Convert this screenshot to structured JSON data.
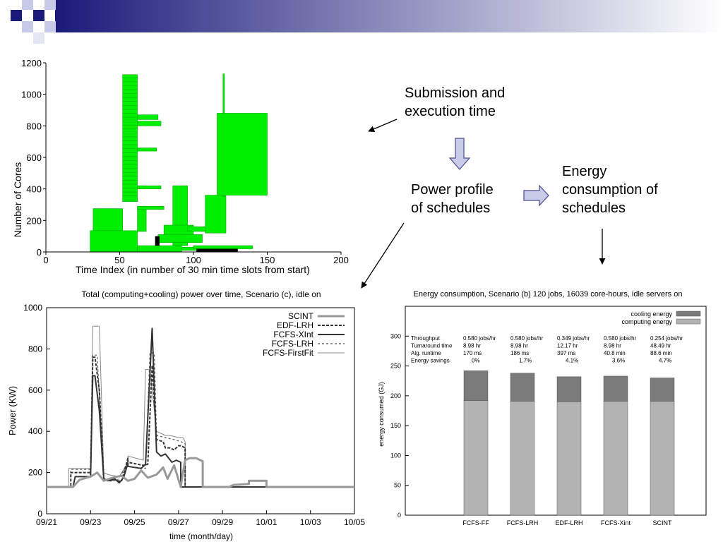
{
  "slide": {
    "accent_color": "#1a1a7a",
    "header_gradient": [
      "#1a1a7a",
      "#ffffff"
    ],
    "flow_labels": {
      "submission": [
        "Submission and",
        "execution time"
      ],
      "power_profile": [
        "Power profile",
        "of schedules"
      ],
      "energy_consumption": [
        "Energy",
        "consumption of",
        "schedules"
      ]
    },
    "arrow_fill": "#c9cce8"
  },
  "chart_data": [
    {
      "type": "bar",
      "title": "",
      "xlabel": "Time Index (in number of 30 min time slots from start)",
      "ylabel": "Number of Cores",
      "xlim": [
        0,
        200
      ],
      "ylim": [
        0,
        1200
      ],
      "xticks": [
        0,
        50,
        100,
        150,
        200
      ],
      "yticks": [
        0,
        200,
        400,
        600,
        800,
        1000,
        1200
      ],
      "bar_color": "#00ee00",
      "blocks": [
        {
          "x0": 52,
          "x1": 62,
          "y0": 320,
          "y1": 1125
        },
        {
          "x0": 62,
          "x1": 76,
          "y0": 840,
          "y1": 870
        },
        {
          "x0": 62,
          "x1": 78,
          "y0": 800,
          "y1": 830
        },
        {
          "x0": 62,
          "x1": 75,
          "y0": 640,
          "y1": 660
        },
        {
          "x0": 62,
          "x1": 78,
          "y0": 400,
          "y1": 420
        },
        {
          "x0": 62,
          "x1": 80,
          "y0": 270,
          "y1": 290
        },
        {
          "x0": 32,
          "x1": 52,
          "y0": 130,
          "y1": 275
        },
        {
          "x0": 30,
          "x1": 62,
          "y0": 0,
          "y1": 135
        },
        {
          "x0": 62,
          "x1": 68,
          "y0": 130,
          "y1": 270
        },
        {
          "x0": 62,
          "x1": 92,
          "y0": 0,
          "y1": 40
        },
        {
          "x0": 86,
          "x1": 96,
          "y0": 40,
          "y1": 420
        },
        {
          "x0": 80,
          "x1": 100,
          "y0": 100,
          "y1": 170
        },
        {
          "x0": 76,
          "x1": 106,
          "y0": 60,
          "y1": 110
        },
        {
          "x0": 96,
          "x1": 108,
          "y0": 130,
          "y1": 160
        },
        {
          "x0": 108,
          "x1": 122,
          "y0": 120,
          "y1": 360
        },
        {
          "x0": 120,
          "x1": 121,
          "y0": 350,
          "y1": 1130
        },
        {
          "x0": 116,
          "x1": 150,
          "y0": 360,
          "y1": 880
        },
        {
          "x0": 92,
          "x1": 130,
          "y0": 10,
          "y1": 30
        },
        {
          "x0": 100,
          "x1": 140,
          "y0": 20,
          "y1": 40
        }
      ],
      "black_blocks": [
        {
          "x0": 74,
          "x1": 77,
          "y0": 40,
          "y1": 100
        },
        {
          "x0": 102,
          "x1": 130,
          "y0": 0,
          "y1": 20
        }
      ]
    },
    {
      "type": "line",
      "title": "Total (computing+cooling) power over time, Scenario (c), idle on",
      "xlabel": "time (month/day)",
      "ylabel": "Power (KW)",
      "xlim": [
        0,
        14
      ],
      "ylim": [
        0,
        1000
      ],
      "xtick_labels": [
        "09/21",
        "09/23",
        "09/25",
        "09/27",
        "09/29",
        "10/01",
        "10/03",
        "10/05"
      ],
      "xtick_values": [
        0,
        2,
        4,
        6,
        8,
        10,
        12,
        14
      ],
      "yticks": [
        0,
        200,
        400,
        600,
        800,
        1000
      ],
      "legend_position": "top-right",
      "series": [
        {
          "name": "SCINT",
          "color": "#999999",
          "width": 3,
          "dash": "",
          "x": [
            0,
            1.2,
            1.5,
            2.0,
            2.3,
            2.6,
            3.0,
            3.4,
            3.7,
            4.0,
            4.3,
            4.6,
            5.0,
            5.3,
            5.5,
            5.8,
            6.1,
            6.2,
            6.3,
            6.5,
            6.8,
            7.0,
            7.1,
            7.1,
            7.3,
            7.8,
            8.0,
            8.3,
            8.5,
            8.5,
            9.2,
            9.2,
            10.0,
            10.0,
            14
          ],
          "y": [
            130,
            130,
            165,
            180,
            200,
            160,
            175,
            185,
            160,
            170,
            210,
            175,
            190,
            225,
            170,
            235,
            130,
            200,
            260,
            270,
            270,
            260,
            255,
            130,
            130,
            130,
            130,
            130,
            140,
            140,
            145,
            160,
            160,
            130,
            130
          ]
        },
        {
          "name": "EDF-LRH",
          "color": "#333333",
          "width": 2,
          "dash": "4,2",
          "x": [
            0,
            1.1,
            1.1,
            2.0,
            2.1,
            2.2,
            2.4,
            2.6,
            2.8,
            3.0,
            3.4,
            3.7,
            3.7,
            4.4,
            4.6,
            4.8,
            5.0,
            5.3,
            5.4,
            5.6,
            5.8,
            6.0,
            6.1,
            6.3,
            6.3,
            6.5,
            14
          ],
          "y": [
            130,
            130,
            200,
            200,
            760,
            760,
            600,
            170,
            160,
            170,
            155,
            270,
            250,
            235,
            240,
            720,
            360,
            350,
            320,
            320,
            310,
            330,
            330,
            320,
            130,
            130,
            130
          ]
        },
        {
          "name": "FCFS-XInt",
          "color": "#333333",
          "width": 2,
          "dash": "",
          "x": [
            0,
            1.2,
            1.3,
            2.0,
            2.1,
            2.2,
            2.4,
            2.6,
            2.9,
            3.1,
            3.3,
            3.5,
            3.7,
            3.7,
            4.3,
            4.5,
            4.8,
            5.0,
            5.2,
            5.4,
            5.7,
            5.9,
            6.1,
            6.1,
            14
          ],
          "y": [
            130,
            130,
            180,
            180,
            670,
            670,
            500,
            165,
            160,
            170,
            150,
            175,
            245,
            230,
            220,
            240,
            900,
            300,
            280,
            290,
            250,
            260,
            250,
            130,
            130
          ]
        },
        {
          "name": "FCFS-LRH",
          "color": "#555555",
          "width": 1.2,
          "dash": "3,3",
          "x": [
            0,
            1.1,
            1.1,
            2.0,
            2.1,
            2.3,
            2.6,
            2.8,
            3.2,
            3.7,
            3.7,
            4.5,
            4.7,
            4.9,
            5.0,
            5.4,
            5.8,
            6.1,
            6.3,
            6.3,
            14
          ],
          "y": [
            130,
            130,
            215,
            215,
            770,
            770,
            170,
            165,
            160,
            240,
            230,
            220,
            780,
            780,
            380,
            370,
            360,
            350,
            340,
            130,
            130
          ]
        },
        {
          "name": "FCFS-FirstFit",
          "color": "#888888",
          "width": 1,
          "dash": "",
          "x": [
            0,
            1.0,
            1.0,
            2.0,
            2.1,
            2.4,
            2.6,
            2.8,
            3.3,
            3.7,
            3.7,
            4.4,
            4.5,
            4.7,
            5.0,
            5.4,
            5.6,
            6.0,
            6.2,
            6.3,
            6.3,
            14
          ],
          "y": [
            130,
            130,
            220,
            220,
            910,
            910,
            200,
            190,
            180,
            250,
            280,
            260,
            700,
            700,
            400,
            380,
            380,
            370,
            370,
            350,
            130,
            130
          ]
        }
      ]
    },
    {
      "type": "bar",
      "title": "Energy consumption, Scenario (b) 120 jobs, 16039 core-hours, idle servers on",
      "xlabel": "",
      "ylabel": "energy consumed (GJ)",
      "ylim": [
        0,
        350
      ],
      "yticks": [
        0,
        50,
        100,
        150,
        200,
        250,
        300
      ],
      "legend_position": "top-right",
      "categories": [
        "FCFS-FF",
        "FCFS-LRH",
        "EDF-LRH",
        "FCFS-Xint",
        "SCINT"
      ],
      "series": [
        {
          "name": "computing energy",
          "color": "#b3b3b3",
          "values": [
            192,
            191,
            190,
            191,
            191
          ]
        },
        {
          "name": "cooling energy",
          "color": "#7a7a7a",
          "values": [
            50,
            47,
            42,
            42,
            39
          ]
        }
      ],
      "table": {
        "row_labels": [
          "Throughput",
          "Turnaround time",
          "Alg. runtime",
          "Energy savings"
        ],
        "columns": [
          [
            "0.580 jobs/hr",
            "8.98 hr",
            "170 ms",
            "0%"
          ],
          [
            "0.580 jobs/hr",
            "8.98 hr",
            "186 ms",
            "1.7%"
          ],
          [
            "0.349 jobs/hr",
            "12.17 hr",
            "397 ms",
            "4.1%"
          ],
          [
            "0.580 jobs/hr",
            "8.98 hr",
            "40.8 min",
            "3.6%"
          ],
          [
            "0.254 jobs/hr",
            "48.49 hr",
            "88.6 min",
            "4.7%"
          ]
        ]
      }
    }
  ]
}
